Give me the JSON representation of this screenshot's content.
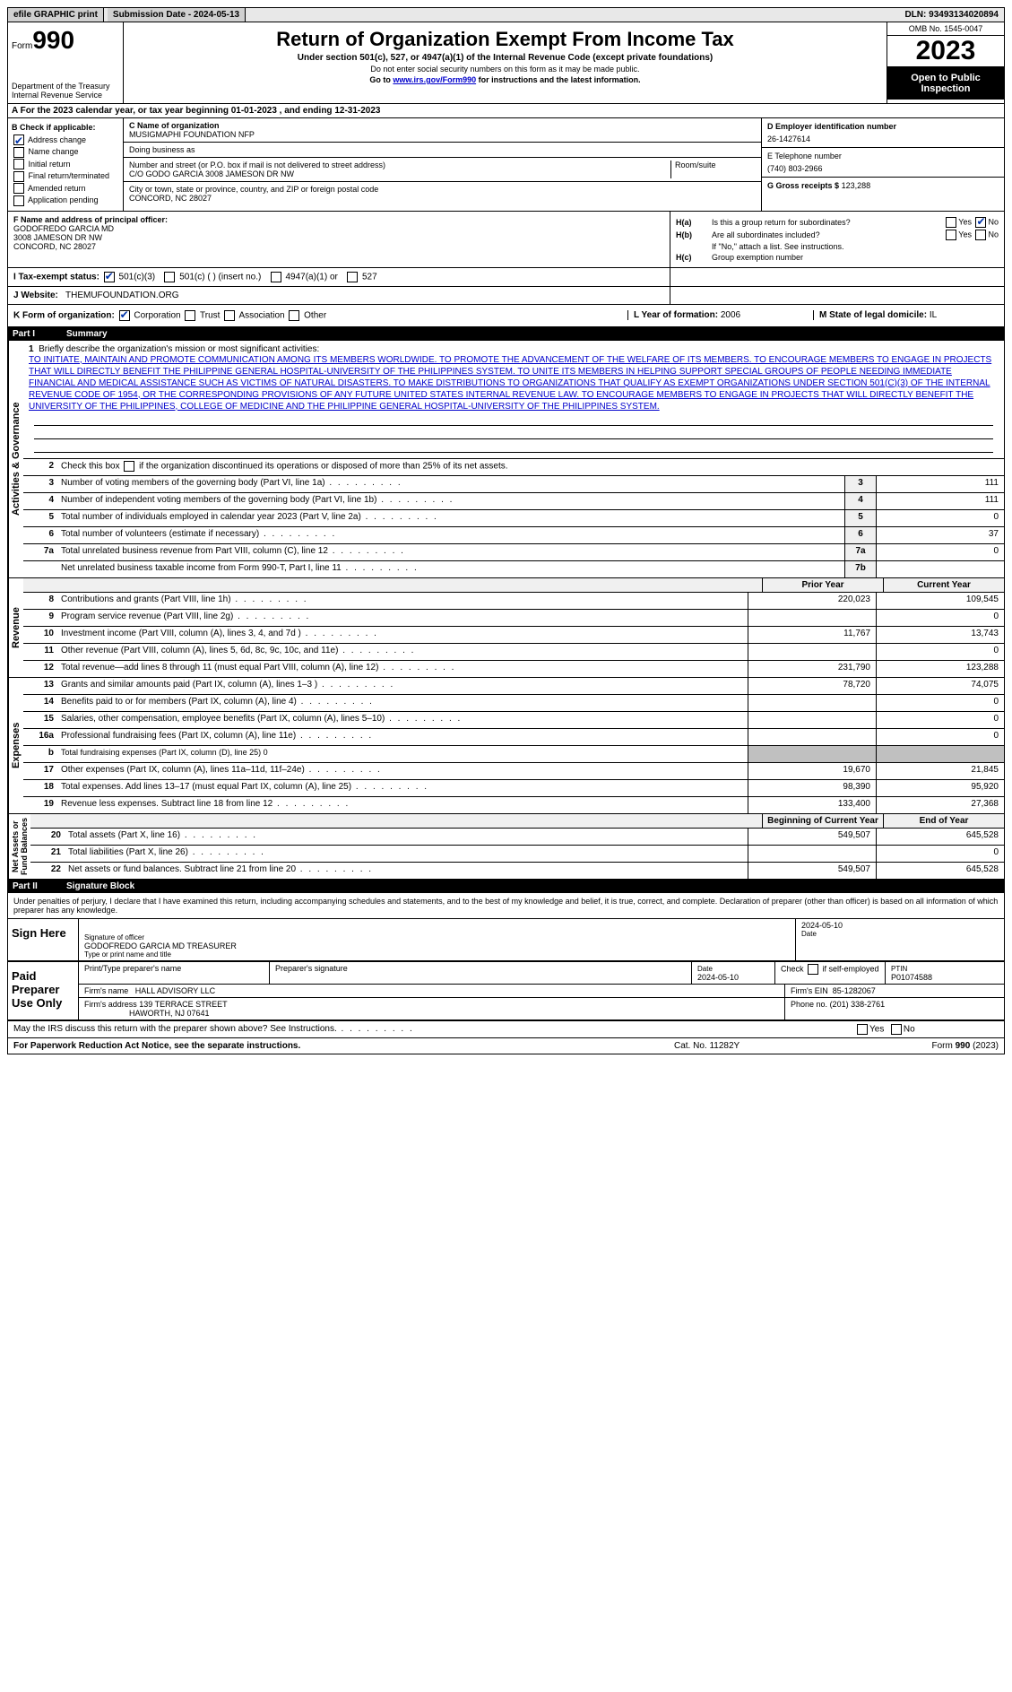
{
  "top_bar": {
    "efile": "efile GRAPHIC print",
    "submission": "Submission Date - 2024-05-13",
    "dln": "DLN: 93493134020894"
  },
  "header": {
    "form_prefix": "Form",
    "form_number": "990",
    "dept": "Department of the Treasury",
    "irs": "Internal Revenue Service",
    "title": "Return of Organization Exempt From Income Tax",
    "sub1": "Under section 501(c), 527, or 4947(a)(1) of the Internal Revenue Code (except private foundations)",
    "sub2": "Do not enter social security numbers on this form as it may be made public.",
    "sub3_pre": "Go to ",
    "sub3_link": "www.irs.gov/Form990",
    "sub3_post": " for instructions and the latest information.",
    "omb": "OMB No. 1545-0047",
    "year": "2023",
    "open": "Open to Public Inspection"
  },
  "row_a": "A For the 2023 calendar year, or tax year beginning 01-01-2023   , and ending 12-31-2023",
  "box_b": {
    "label": "B Check if applicable:",
    "items": [
      "Address change",
      "Name change",
      "Initial return",
      "Final return/terminated",
      "Amended return",
      "Application pending"
    ],
    "checked": [
      true,
      false,
      false,
      false,
      false,
      false
    ]
  },
  "box_c": {
    "name_label": "C Name of organization",
    "name": "MUSIGMAPHI FOUNDATION NFP",
    "dba_label": "Doing business as",
    "dba": "",
    "addr_label": "Number and street (or P.O. box if mail is not delivered to street address)",
    "addr": "C/O GODO GARCIA 3008 JAMESON DR NW",
    "room_label": "Room/suite",
    "city_label": "City or town, state or province, country, and ZIP or foreign postal code",
    "city": "CONCORD, NC  28027"
  },
  "box_de": {
    "d_label": "D Employer identification number",
    "d_val": "26-1427614",
    "e_label": "E Telephone number",
    "e_val": "(740) 803-2966",
    "g_label": "G Gross receipts $",
    "g_val": "123,288"
  },
  "box_f": {
    "label": "F  Name and address of principal officer:",
    "line1": "GODOFREDO GARCIA MD",
    "line2": "3008 JAMESON DR NW",
    "line3": "CONCORD, NC  28027"
  },
  "box_h": {
    "ha_label": "H(a)",
    "ha_text": "Is this a group return for subordinates?",
    "ha_no": true,
    "hb_label": "H(b)",
    "hb_text": "Are all subordinates included?",
    "hb_note": "If \"No,\" attach a list. See instructions.",
    "hc_label": "H(c)",
    "hc_text": "Group exemption number"
  },
  "row_i": {
    "label": "I   Tax-exempt status:",
    "c1": "501(c)(3)",
    "c2": "501(c) (  ) (insert no.)",
    "c3": "4947(a)(1) or",
    "c4": "527"
  },
  "row_j": {
    "label": "J   Website:",
    "val": "THEMUFOUNDATION.ORG"
  },
  "row_k": {
    "label": "K Form of organization:",
    "opts": [
      "Corporation",
      "Trust",
      "Association",
      "Other"
    ],
    "l_label": "L Year of formation:",
    "l_val": "2006",
    "m_label": "M State of legal domicile:",
    "m_val": "IL"
  },
  "part1": {
    "title": "Part I",
    "subtitle": "Summary",
    "line1_label": "Briefly describe the organization's mission or most significant activities:",
    "mission": "TO INITIATE, MAINTAIN AND PROMOTE COMMUNICATION AMONG ITS MEMBERS WORLDWIDE. TO PROMOTE THE ADVANCEMENT OF THE WELFARE OF ITS MEMBERS. TO ENCOURAGE MEMBERS TO ENGAGE IN PROJECTS THAT WILL DIRECTLY BENEFIT THE PHILIPPINE GENERAL HOSPITAL-UNIVERSITY OF THE PHILIPPINES SYSTEM. TO UNITE ITS MEMBERS IN HELPING SUPPORT SPECIAL GROUPS OF PEOPLE NEEDING IMMEDIATE FINANCIAL AND MEDICAL ASSISTANCE SUCH AS VICTIMS OF NATURAL DISASTERS. TO MAKE DISTRIBUTIONS TO ORGANIZATIONS THAT QUALIFY AS EXEMPT ORGANIZATIONS UNDER SECTION 501(C)(3) OF THE INTERNAL REVENUE CODE OF 1954, OR THE CORRESPONDING PROVISIONS OF ANY FUTURE UNITED STATES INTERNAL REVENUE LAW. TO ENCOURAGE MEMBERS TO ENGAGE IN PROJECTS THAT WILL DIRECTLY BENEFIT THE UNIVERSITY OF THE PHILIPPINES, COLLEGE OF MEDICINE AND THE PHILIPPINE GENERAL HOSPITAL-UNIVERSITY OF THE PHILIPPINES SYSTEM.",
    "line2": "Check this box      if the organization discontinued its operations or disposed of more than 25% of its net assets.",
    "lines_ag": [
      {
        "n": "3",
        "d": "Number of voting members of the governing body (Part VI, line 1a)",
        "b": "3",
        "v": "111"
      },
      {
        "n": "4",
        "d": "Number of independent voting members of the governing body (Part VI, line 1b)",
        "b": "4",
        "v": "111"
      },
      {
        "n": "5",
        "d": "Total number of individuals employed in calendar year 2023 (Part V, line 2a)",
        "b": "5",
        "v": "0"
      },
      {
        "n": "6",
        "d": "Total number of volunteers (estimate if necessary)",
        "b": "6",
        "v": "37"
      },
      {
        "n": "7a",
        "d": "Total unrelated business revenue from Part VIII, column (C), line 12",
        "b": "7a",
        "v": "0"
      },
      {
        "n": "",
        "d": "Net unrelated business taxable income from Form 990-T, Part I, line 11",
        "b": "7b",
        "v": ""
      }
    ],
    "prior_label": "Prior Year",
    "current_label": "Current Year",
    "revenue": [
      {
        "n": "8",
        "d": "Contributions and grants (Part VIII, line 1h)",
        "p": "220,023",
        "c": "109,545"
      },
      {
        "n": "9",
        "d": "Program service revenue (Part VIII, line 2g)",
        "p": "",
        "c": "0"
      },
      {
        "n": "10",
        "d": "Investment income (Part VIII, column (A), lines 3, 4, and 7d )",
        "p": "11,767",
        "c": "13,743"
      },
      {
        "n": "11",
        "d": "Other revenue (Part VIII, column (A), lines 5, 6d, 8c, 9c, 10c, and 11e)",
        "p": "",
        "c": "0"
      },
      {
        "n": "12",
        "d": "Total revenue—add lines 8 through 11 (must equal Part VIII, column (A), line 12)",
        "p": "231,790",
        "c": "123,288"
      }
    ],
    "expenses": [
      {
        "n": "13",
        "d": "Grants and similar amounts paid (Part IX, column (A), lines 1–3 )",
        "p": "78,720",
        "c": "74,075"
      },
      {
        "n": "14",
        "d": "Benefits paid to or for members (Part IX, column (A), line 4)",
        "p": "",
        "c": "0"
      },
      {
        "n": "15",
        "d": "Salaries, other compensation, employee benefits (Part IX, column (A), lines 5–10)",
        "p": "",
        "c": "0"
      },
      {
        "n": "16a",
        "d": "Professional fundraising fees (Part IX, column (A), line 11e)",
        "p": "",
        "c": "0"
      },
      {
        "n": "b",
        "d": "Total fundraising expenses (Part IX, column (D), line 25) 0",
        "p": "shaded",
        "c": "shaded"
      },
      {
        "n": "17",
        "d": "Other expenses (Part IX, column (A), lines 11a–11d, 11f–24e)",
        "p": "19,670",
        "c": "21,845"
      },
      {
        "n": "18",
        "d": "Total expenses. Add lines 13–17 (must equal Part IX, column (A), line 25)",
        "p": "98,390",
        "c": "95,920"
      },
      {
        "n": "19",
        "d": "Revenue less expenses. Subtract line 18 from line 12",
        "p": "133,400",
        "c": "27,368"
      }
    ],
    "beg_label": "Beginning of Current Year",
    "end_label": "End of Year",
    "netassets": [
      {
        "n": "20",
        "d": "Total assets (Part X, line 16)",
        "p": "549,507",
        "c": "645,528"
      },
      {
        "n": "21",
        "d": "Total liabilities (Part X, line 26)",
        "p": "",
        "c": "0"
      },
      {
        "n": "22",
        "d": "Net assets or fund balances. Subtract line 21 from line 20",
        "p": "549,507",
        "c": "645,528"
      }
    ]
  },
  "part2": {
    "title": "Part II",
    "subtitle": "Signature Block",
    "declaration": "Under penalties of perjury, I declare that I have examined this return, including accompanying schedules and statements, and to the best of my knowledge and belief, it is true, correct, and complete. Declaration of preparer (other than officer) is based on all information of which preparer has any knowledge."
  },
  "sign": {
    "here": "Sign Here",
    "sig_label": "Signature of officer",
    "name": "GODOFREDO GARCIA MD  TREASURER",
    "name_label": "Type or print name and title",
    "date_label": "Date",
    "date": "2024-05-10"
  },
  "preparer": {
    "label": "Paid Preparer Use Only",
    "name_label": "Print/Type preparer's name",
    "sig_label": "Preparer's signature",
    "date_label": "Date",
    "date": "2024-05-10",
    "check_label": "Check      if self-employed",
    "ptin_label": "PTIN",
    "ptin": "P01074588",
    "firm_name_label": "Firm's name",
    "firm_name": "HALL ADVISORY LLC",
    "firm_ein_label": "Firm's EIN",
    "firm_ein": "85-1282067",
    "firm_addr_label": "Firm's address",
    "firm_addr1": "139 TERRACE STREET",
    "firm_addr2": "HAWORTH, NJ  07641",
    "phone_label": "Phone no.",
    "phone": "(201) 338-2761"
  },
  "footer": {
    "discuss": "May the IRS discuss this return with the preparer shown above? See Instructions.",
    "pra": "For Paperwork Reduction Act Notice, see the separate instructions.",
    "cat": "Cat. No. 11282Y",
    "form": "Form 990 (2023)"
  }
}
